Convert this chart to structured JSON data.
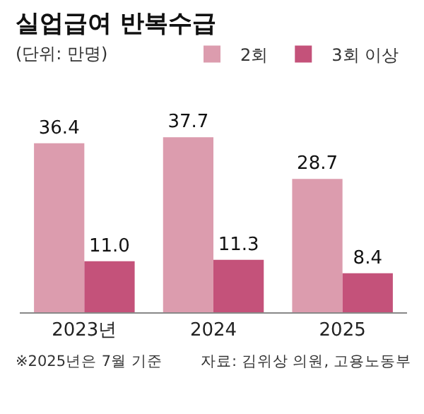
{
  "chart_data": {
    "type": "bar",
    "title": "실업급여 반복수급",
    "subtitle": "(단위: 만명)",
    "categories": [
      "2023년",
      "2024",
      "2025"
    ],
    "series": [
      {
        "name": "2회",
        "color": "#dc9cae",
        "values": [
          36.4,
          37.7,
          28.7
        ],
        "value_labels": [
          "36.4",
          "37.7",
          "28.7"
        ]
      },
      {
        "name": "3회 이상",
        "color": "#c4527a",
        "values": [
          11.0,
          11.3,
          8.4
        ],
        "value_labels": [
          "11.0",
          "11.3",
          "8.4"
        ]
      }
    ],
    "legend": "top right",
    "annotations": [
      "※2025년은 7월 기준",
      "자료: 김위상 의원, 고용노동부"
    ]
  }
}
